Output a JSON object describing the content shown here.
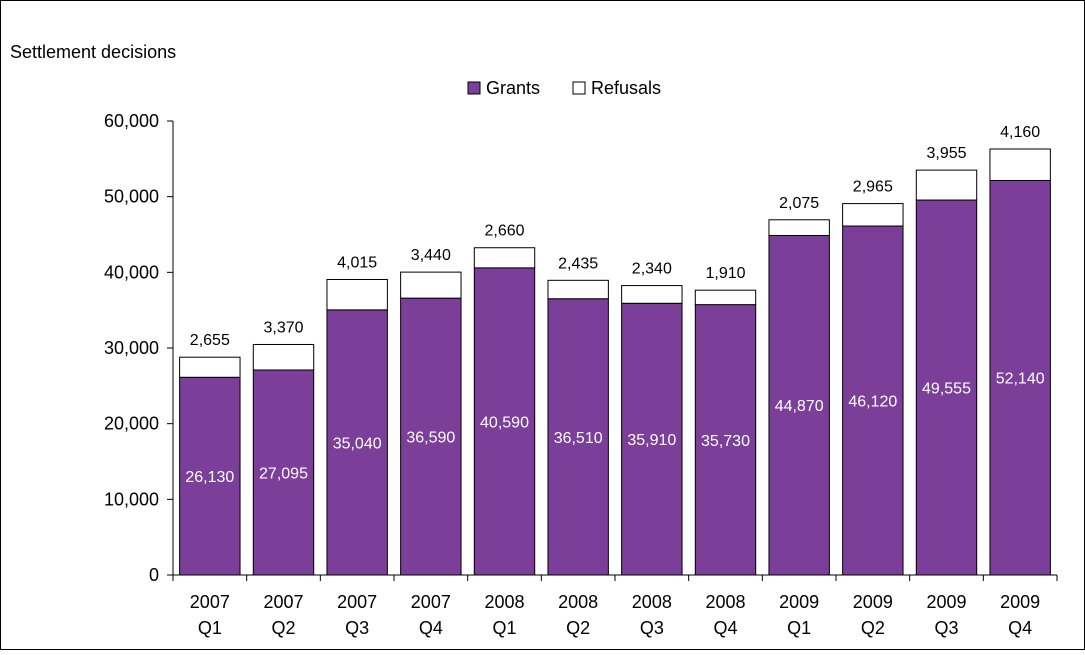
{
  "chart_data": {
    "type": "bar",
    "stacked": true,
    "ylabel": "Settlement decisions",
    "ylim": [
      0,
      60000
    ],
    "yticks": [
      0,
      10000,
      20000,
      30000,
      40000,
      50000,
      60000
    ],
    "ytick_labels": [
      "0",
      "10,000",
      "20,000",
      "30,000",
      "40,000",
      "50,000",
      "60,000"
    ],
    "grid": false,
    "legend_placement": "top-center",
    "categories": [
      [
        "2007",
        "Q1"
      ],
      [
        "2007",
        "Q2"
      ],
      [
        "2007",
        "Q3"
      ],
      [
        "2007",
        "Q4"
      ],
      [
        "2008",
        "Q1"
      ],
      [
        "2008",
        "Q2"
      ],
      [
        "2008",
        "Q3"
      ],
      [
        "2008",
        "Q4"
      ],
      [
        "2009",
        "Q1"
      ],
      [
        "2009",
        "Q2"
      ],
      [
        "2009",
        "Q3"
      ],
      [
        "2009",
        "Q4"
      ]
    ],
    "series": [
      {
        "name": "Grants",
        "color": "#7B3F99",
        "values": [
          26130,
          27095,
          35040,
          36590,
          40590,
          36510,
          35910,
          35730,
          44870,
          46120,
          49555,
          52140
        ],
        "labels": [
          "26,130",
          "27,095",
          "35,040",
          "36,590",
          "40,590",
          "36,510",
          "35,910",
          "35,730",
          "44,870",
          "46,120",
          "49,555",
          "52,140"
        ]
      },
      {
        "name": "Refusals",
        "color": "#FFFFFF",
        "values": [
          2655,
          3370,
          4015,
          3440,
          2660,
          2435,
          2340,
          1910,
          2075,
          2965,
          3955,
          4160
        ],
        "labels": [
          "2,655",
          "3,370",
          "4,015",
          "3,440",
          "2,660",
          "2,435",
          "2,340",
          "1,910",
          "2,075",
          "2,965",
          "3,955",
          "4,160"
        ]
      }
    ]
  }
}
